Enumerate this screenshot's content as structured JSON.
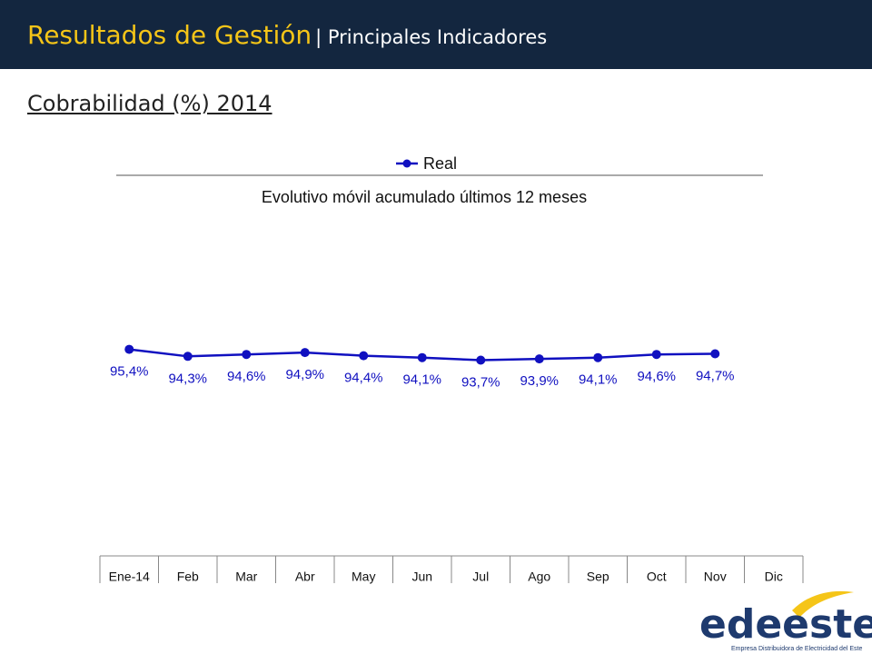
{
  "slide": {
    "title": "Resultados de Gestión",
    "subtitle": "| Principales Indicadores",
    "heading": "Cobrabilidad (%) 2014",
    "logo": "edeeste",
    "logo_tagline": "Empresa Distribuidora de Electricidad del Este"
  },
  "chart_data": {
    "type": "line",
    "title": "Evolutivo móvil acumulado últimos 12 meses",
    "categories": [
      "Ene-14",
      "Feb",
      "Mar",
      "Abr",
      "May",
      "Jun",
      "Jul",
      "Ago",
      "Sep",
      "Oct",
      "Nov",
      "Dic"
    ],
    "series": [
      {
        "name": "Real",
        "color": "#1010c0",
        "values": [
          95.4,
          94.3,
          94.6,
          94.9,
          94.4,
          94.1,
          93.7,
          93.9,
          94.1,
          94.6,
          94.7,
          null
        ],
        "value_labels": [
          "95,4%",
          "94,3%",
          "94,6%",
          "94,9%",
          "94,4%",
          "94,1%",
          "93,7%",
          "93,9%",
          "94,1%",
          "94,6%",
          "94,7%",
          null
        ]
      }
    ],
    "ylim": [
      63,
      116
    ],
    "legend": "top"
  }
}
